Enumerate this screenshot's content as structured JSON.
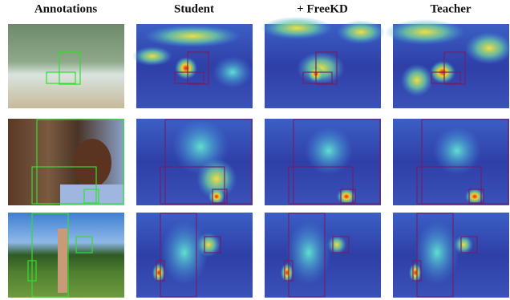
{
  "columns": [
    "Annotations",
    "Student",
    "+ FreeKD",
    "Teacher"
  ]
}
